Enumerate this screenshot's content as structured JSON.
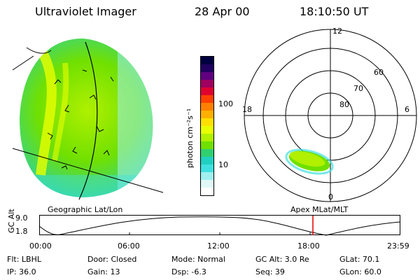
{
  "header": {
    "title": "Ultraviolet Imager",
    "date": "28 Apr 00",
    "time": "18:10:50 UT"
  },
  "image_panel": {
    "label": "Geographic Lat/Lon"
  },
  "colorbar": {
    "unit_label": "photon cm⁻²s⁻¹",
    "ticks": [
      "100",
      "10"
    ],
    "colors": [
      "#000040",
      "#200060",
      "#600080",
      "#a00060",
      "#e00030",
      "#ff4000",
      "#ff8000",
      "#ffb000",
      "#ffe000",
      "#e8ff00",
      "#b0f000",
      "#70e000",
      "#30d070",
      "#20d0c0",
      "#40e0e0",
      "#a0f0f0",
      "#e0f8f8",
      "#ffffff"
    ]
  },
  "polar_plot": {
    "label": "Apex MLat/MLT",
    "mlt_labels": {
      "top": "12",
      "bottom": "0",
      "left": "18",
      "right": "6"
    },
    "lat_labels": [
      "60",
      "70",
      "80"
    ]
  },
  "altitude_plot": {
    "ylabel": "GC Alt",
    "yticks": [
      "9.0",
      "1.8"
    ],
    "xticks": [
      "00:00",
      "06:00",
      "12:00",
      "18:00",
      "23:59"
    ],
    "marker_time": "18:10:50"
  },
  "footer": {
    "filter": "Flt: LBHL",
    "ip": "IP: 36.0",
    "door": "Door: Closed",
    "gain": "Gain: 13",
    "mode": "Mode: Normal",
    "dsp": "Dsp:   -6.3",
    "gc_alt": "GC Alt: 3.0 Re",
    "seq": "Seq: 39",
    "glat": "GLat:  70.1",
    "glon": "GLon:  60.0"
  },
  "colors": {
    "marker": "#e00000",
    "axis": "#000000"
  }
}
